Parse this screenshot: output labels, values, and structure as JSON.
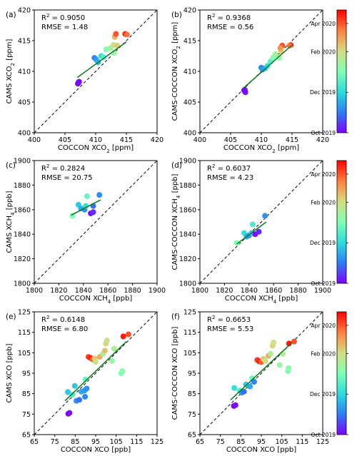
{
  "figure": {
    "colorbar": {
      "tick_labels": [
        "Apr 2020",
        "Feb 2020",
        "Dec 2019",
        "Oct 2019"
      ],
      "tick_fractions": [
        0.89,
        0.66,
        0.33,
        0.0
      ],
      "colormap": "rainbow",
      "stops": [
        "#8000ff",
        "#2c7ef7",
        "#2adddd",
        "#80ffb4",
        "#d4dd80",
        "#ff8040",
        "#ff0000"
      ]
    }
  },
  "chart_data": [
    {
      "panel_label": "(a)",
      "type": "scatter",
      "xlabel": "COCCON XCO",
      "xlabel_sub": "2",
      "xlabel_suffix": " [ppm]",
      "ylabel": "CAMS XCO",
      "ylabel_sub": "2",
      "ylabel_suffix": " [ppm]",
      "xlim": [
        400,
        420
      ],
      "ylim": [
        400,
        420
      ],
      "xticks": [
        400,
        405,
        410,
        415,
        420
      ],
      "yticks": [
        400,
        405,
        410,
        415,
        420
      ],
      "r2_label": "R",
      "r2_sup": "2",
      "r2_value": " = 0.9050",
      "rmse_text": "RMSE = 1.48",
      "one_to_one_line": true,
      "fit_line": {
        "x": [
          407.0,
          415.0
        ],
        "y": [
          409.0,
          414.8
        ]
      },
      "points": [
        {
          "x": 407.3,
          "y": 408.3,
          "t": 0.0
        },
        {
          "x": 407.1,
          "y": 408.0,
          "t": 0.02
        },
        {
          "x": 407.2,
          "y": 408.2,
          "t": 0.01
        },
        {
          "x": 409.8,
          "y": 412.2,
          "t": 0.18
        },
        {
          "x": 410.1,
          "y": 411.9,
          "t": 0.22
        },
        {
          "x": 410.4,
          "y": 411.5,
          "t": 0.25
        },
        {
          "x": 410.9,
          "y": 412.5,
          "t": 0.35
        },
        {
          "x": 411.3,
          "y": 412.3,
          "t": 0.42
        },
        {
          "x": 411.7,
          "y": 413.6,
          "t": 0.5
        },
        {
          "x": 412.4,
          "y": 413.8,
          "t": 0.58
        },
        {
          "x": 412.9,
          "y": 414.3,
          "t": 0.63
        },
        {
          "x": 413.0,
          "y": 413.0,
          "t": 0.55
        },
        {
          "x": 413.1,
          "y": 415.6,
          "t": 0.75
        },
        {
          "x": 413.5,
          "y": 414.2,
          "t": 0.7
        },
        {
          "x": 413.3,
          "y": 416.1,
          "t": 0.9
        },
        {
          "x": 414.8,
          "y": 416.1,
          "t": 0.95
        },
        {
          "x": 415.1,
          "y": 416.0,
          "t": 0.85
        }
      ]
    },
    {
      "panel_label": "(b)",
      "type": "scatter",
      "xlabel": "COCCON XCO",
      "xlabel_sub": "2",
      "xlabel_suffix": " [ppm]",
      "ylabel": "CAMS-COCCON XCO",
      "ylabel_sub": "2",
      "ylabel_suffix": " [ppm]",
      "xlim": [
        400,
        420
      ],
      "ylim": [
        400,
        420
      ],
      "xticks": [
        400,
        405,
        410,
        415,
        420
      ],
      "yticks": [
        400,
        405,
        410,
        415,
        420
      ],
      "r2_label": "R",
      "r2_sup": "2",
      "r2_value": " = 0.9368",
      "rmse_text": "RMSE = 0.56",
      "one_to_one_line": true,
      "fit_line": {
        "x": [
          407.0,
          415.0
        ],
        "y": [
          407.2,
          414.3
        ]
      },
      "points": [
        {
          "x": 407.2,
          "y": 406.9,
          "t": 0.0
        },
        {
          "x": 407.4,
          "y": 406.6,
          "t": 0.03
        },
        {
          "x": 407.3,
          "y": 407.0,
          "t": 0.01
        },
        {
          "x": 410.0,
          "y": 410.6,
          "t": 0.18
        },
        {
          "x": 410.2,
          "y": 410.3,
          "t": 0.22
        },
        {
          "x": 410.6,
          "y": 410.5,
          "t": 0.25
        },
        {
          "x": 411.0,
          "y": 410.9,
          "t": 0.35
        },
        {
          "x": 411.5,
          "y": 411.6,
          "t": 0.42
        },
        {
          "x": 411.9,
          "y": 412.2,
          "t": 0.5
        },
        {
          "x": 412.3,
          "y": 412.8,
          "t": 0.58
        },
        {
          "x": 412.9,
          "y": 412.2,
          "t": 0.55
        },
        {
          "x": 413.2,
          "y": 413.3,
          "t": 0.7
        },
        {
          "x": 413.4,
          "y": 414.2,
          "t": 0.9
        },
        {
          "x": 413.1,
          "y": 413.8,
          "t": 0.8
        },
        {
          "x": 414.8,
          "y": 414.3,
          "t": 0.95
        },
        {
          "x": 414.6,
          "y": 414.2,
          "t": 0.85
        }
      ]
    },
    {
      "panel_label": "(c)",
      "type": "scatter",
      "xlabel": "COCCON XCH",
      "xlabel_sub": "4",
      "xlabel_suffix": " [ppb]",
      "ylabel": "CAMS XCH",
      "ylabel_sub": "4",
      "ylabel_suffix": " [ppb]",
      "xlim": [
        1800,
        1900
      ],
      "ylim": [
        1800,
        1900
      ],
      "xticks": [
        1800,
        1820,
        1840,
        1860,
        1880,
        1900
      ],
      "yticks": [
        1800,
        1820,
        1840,
        1860,
        1880,
        1900
      ],
      "r2_label": "R",
      "r2_sup": "2",
      "r2_value": " = 0.2824",
      "rmse_text": "RMSE = 20.75",
      "one_to_one_line": true,
      "fit_line": {
        "x": [
          1830,
          1854
        ],
        "y": [
          1855.5,
          1868.0
        ]
      },
      "points": [
        {
          "x": 1831,
          "y": 1855,
          "t": 0.5
        },
        {
          "x": 1836,
          "y": 1864,
          "t": 0.3
        },
        {
          "x": 1838,
          "y": 1861,
          "t": 0.25
        },
        {
          "x": 1841,
          "y": 1860,
          "t": 0.2
        },
        {
          "x": 1842,
          "y": 1863,
          "t": 0.35
        },
        {
          "x": 1843,
          "y": 1871,
          "t": 0.45
        },
        {
          "x": 1846,
          "y": 1857,
          "t": 0.02
        },
        {
          "x": 1848,
          "y": 1858,
          "t": 0.05
        },
        {
          "x": 1848,
          "y": 1863,
          "t": 0.15
        },
        {
          "x": 1853,
          "y": 1872,
          "t": 0.2
        }
      ]
    },
    {
      "panel_label": "(d)",
      "type": "scatter",
      "xlabel": "COCCON XCH",
      "xlabel_sub": "4",
      "xlabel_suffix": " [ppb]",
      "ylabel": "CAMS-COCCON XCH",
      "ylabel_sub": "4",
      "ylabel_suffix": " [ppb]",
      "xlim": [
        1800,
        1900
      ],
      "ylim": [
        1800,
        1900
      ],
      "xticks": [
        1800,
        1820,
        1840,
        1860,
        1880,
        1900
      ],
      "yticks": [
        1800,
        1820,
        1840,
        1860,
        1880,
        1900
      ],
      "r2_label": "R",
      "r2_sup": "2",
      "r2_value": " = 0.6037",
      "rmse_text": "RMSE = 4.23",
      "one_to_one_line": true,
      "fit_line": {
        "x": [
          1830,
          1854
        ],
        "y": [
          1832.0,
          1850.0
        ]
      },
      "points": [
        {
          "x": 1830,
          "y": 1833,
          "t": 0.5
        },
        {
          "x": 1836,
          "y": 1841,
          "t": 0.35
        },
        {
          "x": 1838,
          "y": 1838,
          "t": 0.25
        },
        {
          "x": 1840,
          "y": 1839,
          "t": 0.2
        },
        {
          "x": 1842,
          "y": 1841,
          "t": 0.3
        },
        {
          "x": 1843,
          "y": 1848,
          "t": 0.4
        },
        {
          "x": 1845,
          "y": 1840,
          "t": 0.02
        },
        {
          "x": 1848,
          "y": 1842,
          "t": 0.05
        },
        {
          "x": 1853,
          "y": 1855,
          "t": 0.2
        }
      ]
    },
    {
      "panel_label": "(e)",
      "type": "scatter",
      "xlabel": "COCCON XCO",
      "xlabel_sub": "",
      "xlabel_suffix": " [ppb]",
      "ylabel": "CAMS XCO",
      "ylabel_sub": "",
      "ylabel_suffix": " [ppb]",
      "xlim": [
        65,
        125
      ],
      "ylim": [
        65,
        125
      ],
      "xticks": [
        65,
        75,
        85,
        95,
        105,
        115,
        125
      ],
      "yticks": [
        65,
        75,
        85,
        95,
        105,
        115,
        125
      ],
      "r2_label": "R",
      "r2_sup": "2",
      "r2_value": " = 0.6148",
      "rmse_text": "RMSE = 6.80",
      "one_to_one_line": true,
      "fit_line": {
        "x": [
          80,
          110
        ],
        "y": [
          81.5,
          110.5
        ]
      },
      "points": [
        {
          "x": 81.6,
          "y": 75.2,
          "t": 0.0
        },
        {
          "x": 82.2,
          "y": 75.6,
          "t": 0.02
        },
        {
          "x": 81.4,
          "y": 85.8,
          "t": 0.3
        },
        {
          "x": 83.5,
          "y": 84.5,
          "t": 0.4
        },
        {
          "x": 84.8,
          "y": 88.8,
          "t": 0.3
        },
        {
          "x": 85.6,
          "y": 81.5,
          "t": 0.2
        },
        {
          "x": 87.0,
          "y": 82.0,
          "t": 0.15
        },
        {
          "x": 88.0,
          "y": 86.0,
          "t": 0.25
        },
        {
          "x": 89.5,
          "y": 86.5,
          "t": 0.22
        },
        {
          "x": 89.8,
          "y": 83.5,
          "t": 0.18
        },
        {
          "x": 90.6,
          "y": 87.5,
          "t": 0.2
        },
        {
          "x": 90.0,
          "y": 92.0,
          "t": 0.45
        },
        {
          "x": 91.5,
          "y": 103.0,
          "t": 0.92
        },
        {
          "x": 92.5,
          "y": 102.5,
          "t": 0.96
        },
        {
          "x": 93.5,
          "y": 101.8,
          "t": 0.88
        },
        {
          "x": 94.5,
          "y": 102.2,
          "t": 0.7
        },
        {
          "x": 95.0,
          "y": 100.5,
          "t": 0.65
        },
        {
          "x": 97.0,
          "y": 103.0,
          "t": 0.75
        },
        {
          "x": 98.5,
          "y": 104.5,
          "t": 0.6
        },
        {
          "x": 99.5,
          "y": 106.0,
          "t": 0.72
        },
        {
          "x": 100.0,
          "y": 109.5,
          "t": 0.68
        },
        {
          "x": 100.5,
          "y": 111.0,
          "t": 0.65
        },
        {
          "x": 103.0,
          "y": 101.0,
          "t": 0.55
        },
        {
          "x": 104.0,
          "y": 107.0,
          "t": 0.6
        },
        {
          "x": 107.5,
          "y": 95.0,
          "t": 0.5
        },
        {
          "x": 108.0,
          "y": 96.0,
          "t": 0.52
        },
        {
          "x": 108.5,
          "y": 113.0,
          "t": 0.97
        },
        {
          "x": 111.0,
          "y": 114.0,
          "t": 0.9
        }
      ]
    },
    {
      "panel_label": "(f)",
      "type": "scatter",
      "xlabel": "COCCON XCO",
      "xlabel_sub": "",
      "xlabel_suffix": " [ppb]",
      "ylabel": "CAMS-COCCON XCO",
      "ylabel_sub": "",
      "ylabel_suffix": " [ppb]",
      "xlim": [
        65,
        125
      ],
      "ylim": [
        65,
        125
      ],
      "xticks": [
        65,
        75,
        85,
        95,
        105,
        115,
        125
      ],
      "yticks": [
        65,
        75,
        85,
        95,
        105,
        115,
        125
      ],
      "r2_label": "R",
      "r2_sup": "2",
      "r2_value": " = 0.6653",
      "rmse_text": "RMSE = 5.53",
      "one_to_one_line": true,
      "fit_line": {
        "x": [
          80,
          110
        ],
        "y": [
          82.0,
          110.0
        ]
      },
      "points": [
        {
          "x": 81.6,
          "y": 79.0,
          "t": 0.0
        },
        {
          "x": 82.4,
          "y": 79.4,
          "t": 0.02
        },
        {
          "x": 81.8,
          "y": 87.8,
          "t": 0.35
        },
        {
          "x": 84.5,
          "y": 86.5,
          "t": 0.4
        },
        {
          "x": 85.5,
          "y": 85.5,
          "t": 0.2
        },
        {
          "x": 86.5,
          "y": 86.0,
          "t": 0.15
        },
        {
          "x": 87.5,
          "y": 89.5,
          "t": 0.3
        },
        {
          "x": 89.5,
          "y": 88.5,
          "t": 0.25
        },
        {
          "x": 90.5,
          "y": 92.5,
          "t": 0.45
        },
        {
          "x": 91.5,
          "y": 90.8,
          "t": 0.18
        },
        {
          "x": 93.0,
          "y": 101.5,
          "t": 0.92
        },
        {
          "x": 94.0,
          "y": 100.8,
          "t": 0.96
        },
        {
          "x": 95.0,
          "y": 100.5,
          "t": 0.88
        },
        {
          "x": 96.0,
          "y": 102.0,
          "t": 0.7
        },
        {
          "x": 97.0,
          "y": 101.0,
          "t": 0.65
        },
        {
          "x": 98.5,
          "y": 103.5,
          "t": 0.75
        },
        {
          "x": 99.5,
          "y": 104.5,
          "t": 0.6
        },
        {
          "x": 100.5,
          "y": 108.5,
          "t": 0.68
        },
        {
          "x": 101.0,
          "y": 110.0,
          "t": 0.65
        },
        {
          "x": 104.0,
          "y": 99.0,
          "t": 0.55
        },
        {
          "x": 105.5,
          "y": 104.5,
          "t": 0.6
        },
        {
          "x": 108.0,
          "y": 96.0,
          "t": 0.5
        },
        {
          "x": 108.3,
          "y": 97.5,
          "t": 0.52
        },
        {
          "x": 108.5,
          "y": 109.5,
          "t": 0.97
        },
        {
          "x": 111.0,
          "y": 110.5,
          "t": 0.9
        }
      ]
    }
  ]
}
